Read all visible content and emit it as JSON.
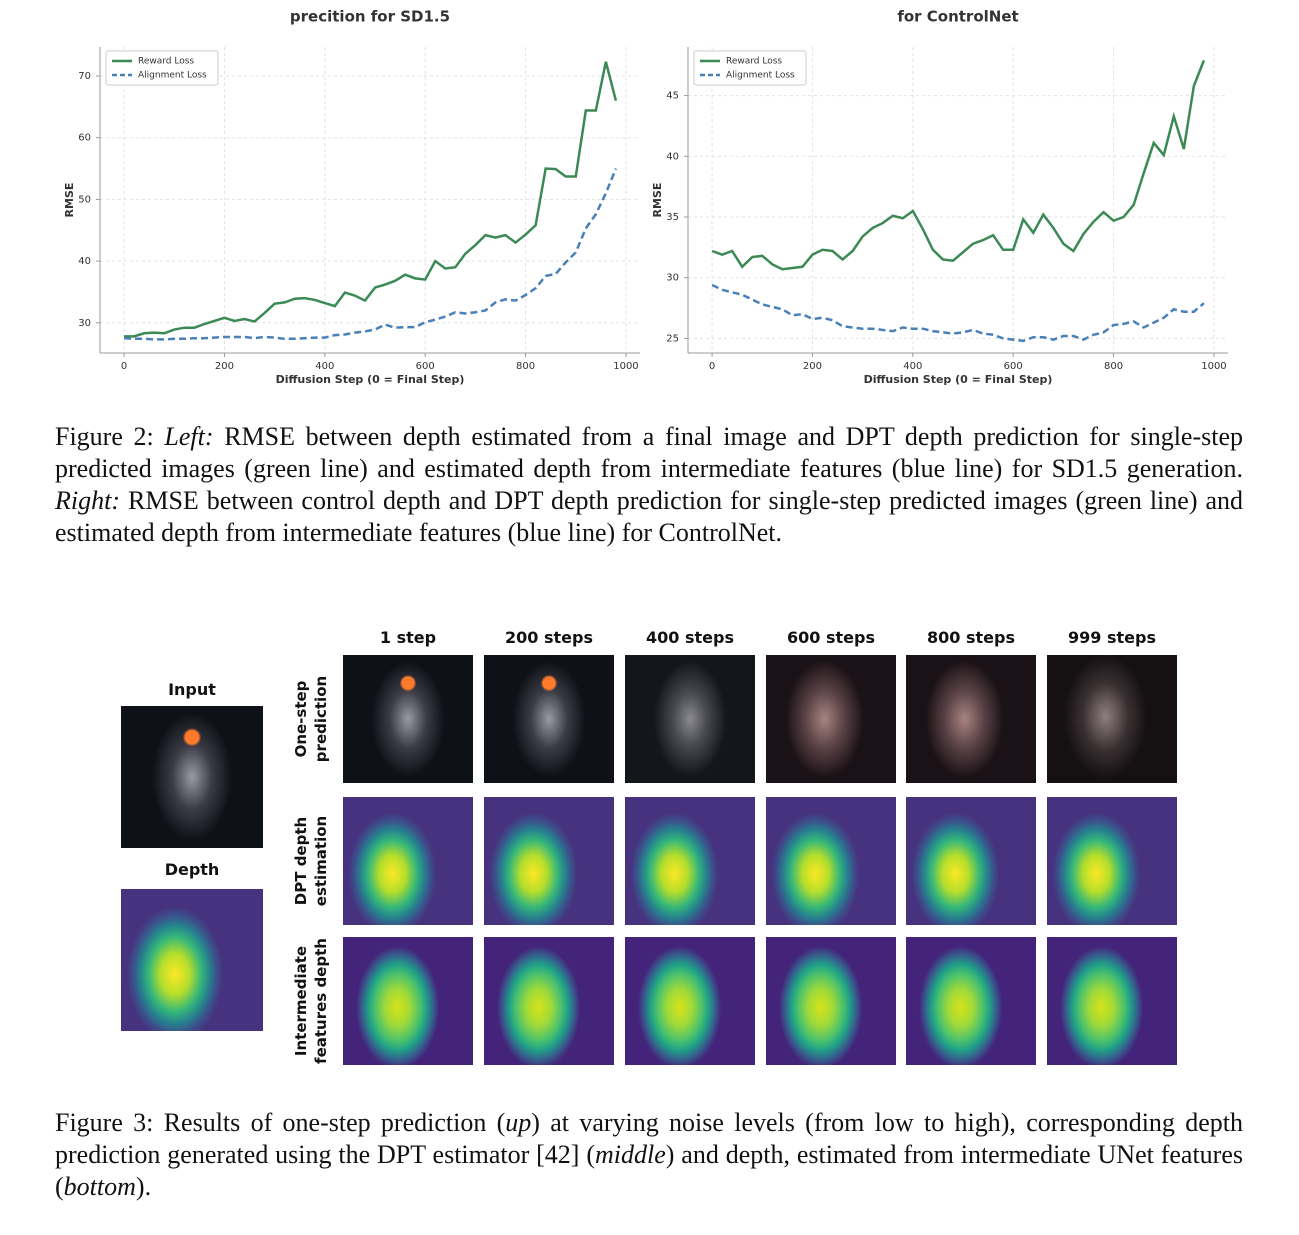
{
  "chart_data": [
    {
      "type": "line",
      "title": "precition for SD1.5",
      "xlabel": "Diffusion Step (0 = Final Step)",
      "ylabel": "RMSE",
      "x": [
        0,
        20,
        40,
        60,
        80,
        100,
        120,
        140,
        160,
        180,
        200,
        220,
        240,
        260,
        280,
        300,
        320,
        340,
        360,
        380,
        400,
        420,
        440,
        460,
        480,
        500,
        520,
        540,
        560,
        580,
        600,
        620,
        640,
        660,
        680,
        700,
        720,
        740,
        760,
        780,
        800,
        820,
        840,
        860,
        880,
        900,
        920,
        940,
        960,
        980
      ],
      "series": [
        {
          "name": "Reward Loss",
          "color": "#3b8a55",
          "values": [
            27.8,
            27.8,
            28.3,
            28.4,
            28.3,
            28.9,
            29.2,
            29.2,
            29.8,
            30.3,
            30.8,
            30.3,
            30.6,
            30.2,
            31.6,
            33.1,
            33.3,
            33.9,
            34.0,
            33.7,
            33.2,
            32.7,
            34.9,
            34.4,
            33.6,
            35.7,
            36.2,
            36.8,
            37.8,
            37.2,
            37.0,
            40.0,
            38.8,
            39.0,
            41.2,
            42.6,
            44.2,
            43.8,
            44.2,
            43.0,
            44.3,
            45.8,
            55.0,
            54.9,
            53.7,
            53.7,
            64.4,
            64.4,
            72.3,
            66.0
          ]
        },
        {
          "name": "Alignment Loss",
          "color": "#4a80b8",
          "dashed": true,
          "values": [
            27.5,
            27.4,
            27.4,
            27.3,
            27.3,
            27.4,
            27.4,
            27.5,
            27.5,
            27.6,
            27.7,
            27.7,
            27.7,
            27.5,
            27.7,
            27.6,
            27.4,
            27.4,
            27.5,
            27.6,
            27.6,
            28.0,
            28.1,
            28.4,
            28.6,
            28.9,
            29.7,
            29.2,
            29.3,
            29.3,
            30.1,
            30.5,
            31.0,
            31.7,
            31.5,
            31.7,
            32.0,
            33.3,
            33.8,
            33.6,
            34.5,
            35.6,
            37.6,
            37.9,
            39.8,
            41.4,
            45.3,
            47.6,
            51.0,
            55.0
          ]
        }
      ],
      "xlim": [
        -48,
        1028
      ],
      "ylim": [
        25.1,
        74.7
      ],
      "xticks": [
        0,
        200,
        400,
        600,
        800,
        1000
      ],
      "yticks": [
        30,
        40,
        50,
        60,
        70
      ],
      "grid": true,
      "legend": "upper left"
    },
    {
      "type": "line",
      "title": "for ControlNet",
      "xlabel": "Diffusion Step (0 = Final Step)",
      "ylabel": "RMSE",
      "x": [
        0,
        20,
        40,
        60,
        80,
        100,
        120,
        140,
        160,
        180,
        200,
        220,
        240,
        260,
        280,
        300,
        320,
        340,
        360,
        380,
        400,
        420,
        440,
        460,
        480,
        500,
        520,
        540,
        560,
        580,
        600,
        620,
        640,
        660,
        680,
        700,
        720,
        740,
        760,
        780,
        800,
        820,
        840,
        860,
        880,
        900,
        920,
        940,
        960,
        980
      ],
      "series": [
        {
          "name": "Reward Loss",
          "color": "#3b8a55",
          "values": [
            32.2,
            31.9,
            32.2,
            30.9,
            31.7,
            31.8,
            31.1,
            30.7,
            30.8,
            30.9,
            31.9,
            32.3,
            32.2,
            31.5,
            32.2,
            33.4,
            34.1,
            34.5,
            35.1,
            34.9,
            35.5,
            34.0,
            32.3,
            31.5,
            31.4,
            32.1,
            32.8,
            33.1,
            33.5,
            32.3,
            32.3,
            34.8,
            33.7,
            35.2,
            34.1,
            32.8,
            32.2,
            33.6,
            34.6,
            35.4,
            34.7,
            35.0,
            36.0,
            38.6,
            41.1,
            40.1,
            43.3,
            40.6,
            45.8,
            47.9
          ]
        },
        {
          "name": "Alignment Loss",
          "color": "#4a80b8",
          "dashed": true,
          "values": [
            29.4,
            29.0,
            28.8,
            28.6,
            28.2,
            27.8,
            27.6,
            27.4,
            26.9,
            27.0,
            26.6,
            26.7,
            26.5,
            26.0,
            25.9,
            25.8,
            25.8,
            25.7,
            25.6,
            25.9,
            25.8,
            25.8,
            25.6,
            25.5,
            25.4,
            25.5,
            25.7,
            25.4,
            25.3,
            25.0,
            24.9,
            24.8,
            25.1,
            25.1,
            24.9,
            25.2,
            25.2,
            24.9,
            25.3,
            25.5,
            26.1,
            26.2,
            26.4,
            25.9,
            26.3,
            26.7,
            27.4,
            27.2,
            27.2,
            27.9
          ]
        }
      ],
      "xlim": [
        -48,
        1028
      ],
      "ylim": [
        23.8,
        49.0
      ],
      "xticks": [
        0,
        200,
        400,
        600,
        800,
        1000
      ],
      "yticks": [
        25,
        30,
        35,
        40,
        45
      ],
      "grid": true,
      "legend": "upper left"
    }
  ],
  "figure2": {
    "label": "Figure 2:",
    "left_label": "Left:",
    "left_text": "RMSE between depth estimated from a final image and DPT depth prediction for single-step predicted images (green line) and estimated depth from intermediate features (blue line) for SD1.5 generation.",
    "right_label": "Right:",
    "right_text": "RMSE between control depth and DPT depth prediction for single-step predicted images (green line) and estimated depth from intermediate features (blue line) for ControlNet."
  },
  "figure3": {
    "columns": [
      "1 step",
      "200 steps",
      "400 steps",
      "600 steps",
      "800 steps",
      "999 steps"
    ],
    "rows": [
      [
        "One-step",
        "prediction"
      ],
      [
        "DPT depth",
        "estimation"
      ],
      [
        "Intermediate",
        "features depth"
      ]
    ],
    "input_label": "Input",
    "depth_label": "Depth",
    "caption": [
      "Figure 3: Results of one-step prediction (",
      "up",
      ") at varying noise levels (from low to high), corresponding depth prediction generated using the DPT estimator [42] (",
      "middle",
      ") and depth, estimated from intermediate UNet features (",
      "bottom",
      ")."
    ]
  }
}
